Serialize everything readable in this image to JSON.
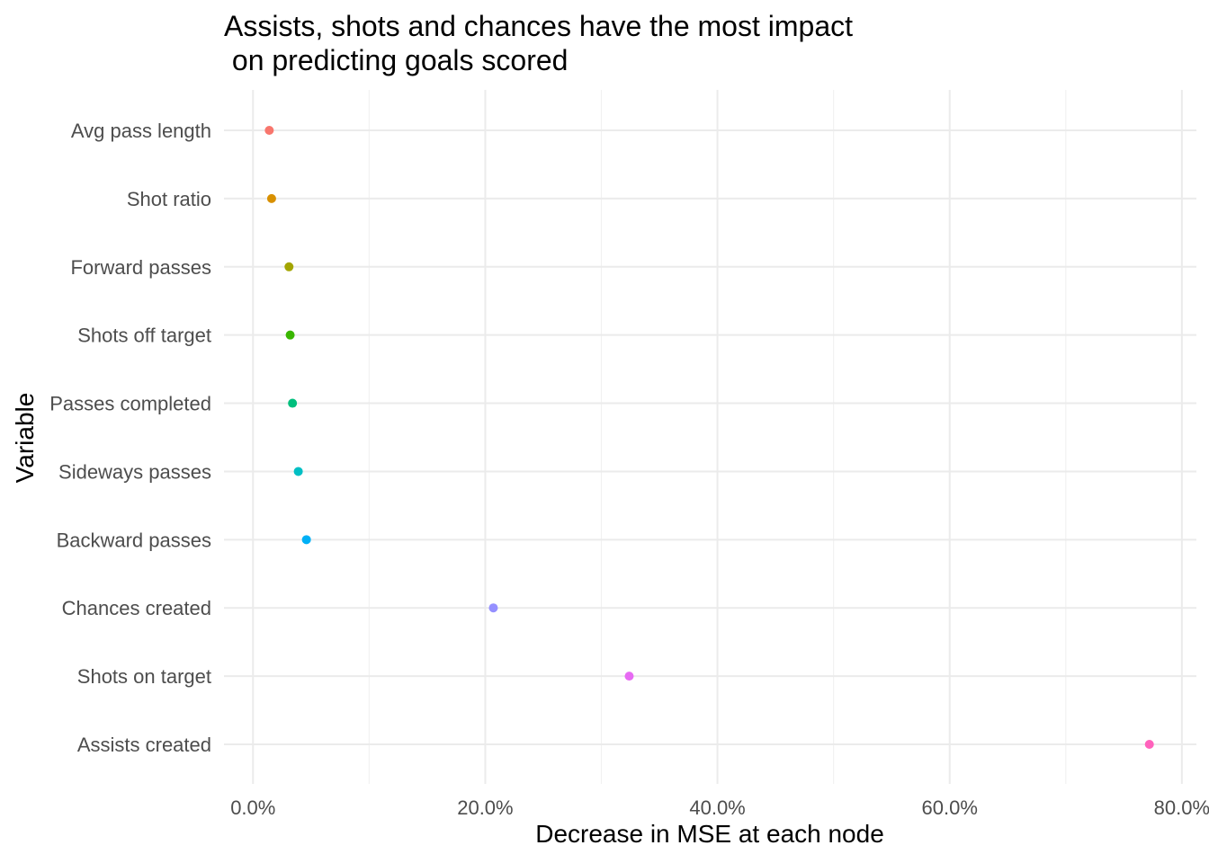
{
  "chart_data": {
    "type": "scatter",
    "title_lines": [
      "Assists, shots and chances have the most impact",
      " on predicting goals scored"
    ],
    "xlabel": "Decrease in MSE at each node",
    "ylabel": "Variable",
    "xlim": [
      -0.025,
      0.8125
    ],
    "xticks": [
      0,
      0.2,
      0.4,
      0.6,
      0.8
    ],
    "xtick_labels": [
      "0.0%",
      "20.0%",
      "40.0%",
      "60.0%",
      "80.0%"
    ],
    "categories": [
      "Avg pass length",
      "Shot ratio",
      "Forward passes",
      "Shots off target",
      "Passes completed",
      "Sideways passes",
      "Backward passes",
      "Chances created",
      "Shots on target",
      "Assists created"
    ],
    "values": [
      0.014,
      0.016,
      0.031,
      0.032,
      0.034,
      0.039,
      0.046,
      0.207,
      0.324,
      0.772
    ],
    "colors": [
      "#F8766D",
      "#D89000",
      "#A3A500",
      "#39B600",
      "#00BF7D",
      "#00BFC4",
      "#00B0F6",
      "#9590FF",
      "#E76BF3",
      "#FF62BC"
    ],
    "grid": true,
    "legend": "none"
  }
}
